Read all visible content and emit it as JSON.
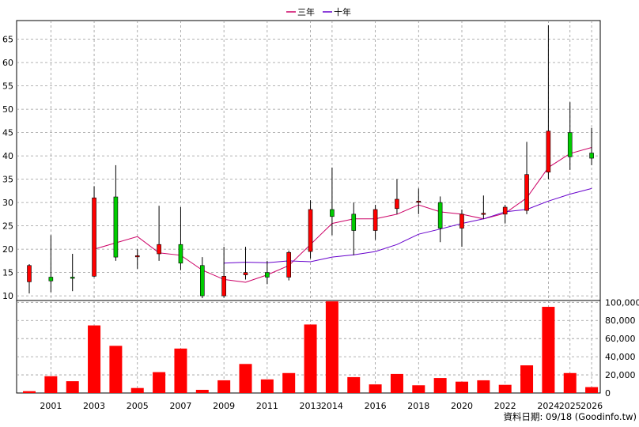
{
  "legend": [
    {
      "name": "三年",
      "color": "#cc0066"
    },
    {
      "name": "十年",
      "color": "#6600cc"
    }
  ],
  "source_note": "資料日期: 09/18 (Goodinfo.tw)",
  "colors": {
    "up": "#ff0000",
    "down": "#00cc00",
    "volume": "#ff0000",
    "grid": "#999999",
    "wick": "#000000"
  },
  "chart_data": [
    {
      "type": "candlestick",
      "y_axis_side": "left",
      "ylim": [
        9,
        69
      ],
      "y_ticks": [
        10,
        15,
        20,
        25,
        30,
        35,
        40,
        45,
        50,
        55,
        60,
        65
      ],
      "x_tick_labels": [
        "2001",
        "2003",
        "2005",
        "2007",
        "2009",
        "2011",
        "2013",
        "2014",
        "2016",
        "2018",
        "2020",
        "2022",
        "2024",
        "2025",
        "2026"
      ],
      "candles": [
        {
          "year": "2000",
          "open": 13,
          "close": 16.5,
          "high": 16.8,
          "low": 10.5
        },
        {
          "year": "2001",
          "open": 14,
          "close": 13.2,
          "high": 23,
          "low": 10.8
        },
        {
          "year": "2002",
          "open": 14,
          "close": 13.8,
          "high": 19,
          "low": 11
        },
        {
          "year": "2003",
          "open": 14.2,
          "close": 31,
          "high": 33.5,
          "low": 14
        },
        {
          "year": "2004",
          "open": 31.2,
          "close": 18.3,
          "high": 38,
          "low": 17.5
        },
        {
          "year": "2005",
          "open": 18.5,
          "close": 18.6,
          "high": 20,
          "low": 15.8
        },
        {
          "year": "2006",
          "open": 19,
          "close": 21,
          "high": 29.3,
          "low": 17.5
        },
        {
          "year": "2007",
          "open": 21,
          "close": 17,
          "high": 29,
          "low": 15.5
        },
        {
          "year": "2008",
          "open": 16.5,
          "close": 10,
          "high": 18.3,
          "low": 9.5
        },
        {
          "year": "2009",
          "open": 10,
          "close": 14.2,
          "high": 20.5,
          "low": 9.6
        },
        {
          "year": "2010",
          "open": 14.5,
          "close": 15,
          "high": 20.5,
          "low": 13.5
        },
        {
          "year": "2011",
          "open": 15,
          "close": 14,
          "high": 17.5,
          "low": 12.5
        },
        {
          "year": "2012",
          "open": 14,
          "close": 19.3,
          "high": 19.7,
          "low": 13.3
        },
        {
          "year": "2013",
          "open": 19.5,
          "close": 28.5,
          "high": 30.5,
          "low": 18
        },
        {
          "year": "2014",
          "open": 28.5,
          "close": 27,
          "high": 37.5,
          "low": 23
        },
        {
          "year": "2015",
          "open": 27.5,
          "close": 24,
          "high": 30,
          "low": 18.7
        },
        {
          "year": "2016",
          "open": 24,
          "close": 28.5,
          "high": 29.5,
          "low": 22
        },
        {
          "year": "2017",
          "open": 28.7,
          "close": 30.7,
          "high": 35,
          "low": 27.5
        },
        {
          "year": "2018",
          "open": 30.2,
          "close": 30.3,
          "high": 33,
          "low": 27.5
        },
        {
          "year": "2019",
          "open": 30,
          "close": 24.5,
          "high": 31.3,
          "low": 21.5
        },
        {
          "year": "2020",
          "open": 24.5,
          "close": 27.5,
          "high": 28.5,
          "low": 20.5
        },
        {
          "year": "2021",
          "open": 27.5,
          "close": 27.7,
          "high": 31.5,
          "low": 26.5
        },
        {
          "year": "2022",
          "open": 27.5,
          "close": 29,
          "high": 29.5,
          "low": 25.5
        },
        {
          "year": "2023",
          "open": 28.3,
          "close": 36,
          "high": 43,
          "low": 27.5
        },
        {
          "year": "2024",
          "open": 36.5,
          "close": 45.3,
          "high": 68,
          "low": 35
        },
        {
          "year": "2025",
          "open": 45,
          "close": 39.8,
          "high": 51.5,
          "low": 37
        },
        {
          "year": "2026",
          "open": 40.6,
          "close": 39.5,
          "high": 46,
          "low": 38
        }
      ],
      "series": [
        {
          "name": "三年",
          "x": [
            "2003",
            "2005",
            "2006",
            "2007",
            "2008",
            "2009",
            "2010",
            "2011",
            "2012",
            "2013",
            "2014",
            "2015",
            "2016",
            "2017",
            "2018",
            "2019",
            "2020",
            "2021",
            "2022",
            "2023",
            "2024",
            "2025",
            "2026"
          ],
          "values": [
            20,
            22.7,
            19.2,
            18.7,
            15.5,
            13.5,
            12.9,
            14.5,
            16.5,
            21,
            25.5,
            26.5,
            26.5,
            27.5,
            29.5,
            28,
            27.5,
            26.5,
            27.7,
            31,
            37.5,
            40.5,
            41.8
          ]
        },
        {
          "name": "十年",
          "x": [
            "2009",
            "2010",
            "2011",
            "2012",
            "2013",
            "2014",
            "2015",
            "2016",
            "2017",
            "2018",
            "2019",
            "2020",
            "2021",
            "2022",
            "2023",
            "2024",
            "2025",
            "2026"
          ],
          "values": [
            17,
            17.2,
            17.1,
            17.5,
            17.3,
            18.3,
            18.8,
            19.5,
            21,
            23.2,
            24.3,
            25.5,
            26.5,
            28,
            28.5,
            30.3,
            31.8,
            33
          ]
        }
      ]
    },
    {
      "type": "bar",
      "y_axis_side": "right",
      "ylim": [
        0,
        102000
      ],
      "y_tick_values": [
        0,
        20000,
        40000,
        60000,
        80000,
        100000
      ],
      "y_tick_labels": [
        "0",
        "20,000",
        "40,000",
        "60,000",
        "80,000",
        "100,000"
      ],
      "categories": [
        "2000",
        "2001",
        "2002",
        "2003",
        "2004",
        "2005",
        "2006",
        "2007",
        "2008",
        "2009",
        "2010",
        "2011",
        "2012",
        "2013",
        "2014",
        "2015",
        "2016",
        "2017",
        "2018",
        "2019",
        "2020",
        "2021",
        "2022",
        "2023",
        "2024",
        "2025",
        "2026"
      ],
      "values": [
        2000,
        18500,
        13000,
        74500,
        52000,
        5500,
        23000,
        49000,
        3500,
        14000,
        32000,
        15000,
        22000,
        75500,
        101000,
        17500,
        9500,
        21000,
        8500,
        16500,
        12500,
        14000,
        9000,
        30500,
        95000,
        22000,
        6500
      ]
    }
  ]
}
